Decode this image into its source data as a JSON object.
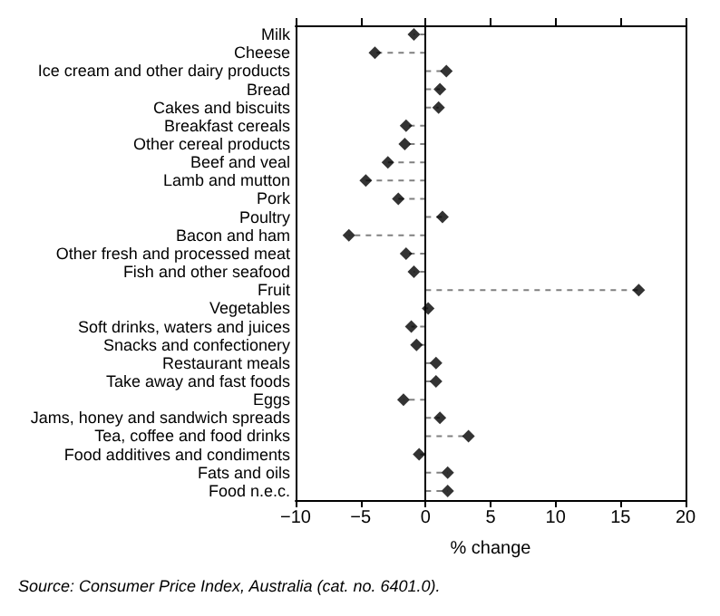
{
  "chart_data": {
    "type": "lollipop",
    "orientation": "horizontal",
    "xlabel": "% change",
    "annotations": [
      "Source: Consumer Price Index, Australia (cat. no. 6401.0)."
    ],
    "categories": [
      "Milk",
      "Cheese",
      "Ice cream and other dairy products",
      "Bread",
      "Cakes and biscuits",
      "Breakfast cereals",
      "Other cereal products",
      "Beef and veal",
      "Lamb and mutton",
      "Pork",
      "Poultry",
      "Bacon and ham",
      "Other fresh and processed meat",
      "Fish and other seafood",
      "Fruit",
      "Vegetables",
      "Soft drinks, waters and juices",
      "Snacks and confectionery",
      "Restaurant meals",
      "Take away and fast foods",
      "Eggs",
      "Jams, honey and sandwich spreads",
      "Tea, coffee and food drinks",
      "Food additives and condiments",
      "Fats and oils",
      "Food n.e.c."
    ],
    "series": [
      {
        "color": "#000000",
        "values": [
          -0.9,
          -3.9,
          1.6,
          1.1,
          1.0,
          -1.5,
          -1.6,
          -2.9,
          -4.6,
          -2.1,
          1.3,
          -5.9,
          -1.5,
          -0.9,
          16.4,
          0.2,
          -1.1,
          -0.7,
          0.8,
          0.8,
          -1.7,
          1.1,
          3.3,
          -0.5,
          1.7,
          1.7
        ]
      }
    ],
    "xlim": [
      -10,
      20
    ],
    "xticks": [
      -10,
      -5,
      0,
      5,
      10,
      15,
      20
    ],
    "marker": "diamond",
    "line_style": "dashed",
    "ref_lines": [
      {
        "axis": "x",
        "value": 0,
        "color": "#000000"
      }
    ]
  }
}
